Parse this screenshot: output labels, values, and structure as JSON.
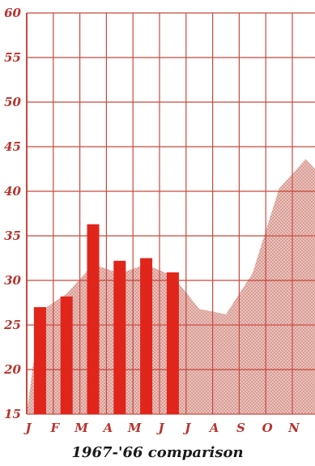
{
  "caption": "1967-'66 comparison",
  "chart_data": {
    "type": "bar",
    "title": "",
    "xlabel": "",
    "ylabel": "",
    "categories": [
      "J",
      "F",
      "M",
      "A",
      "M",
      "J",
      "J",
      "A",
      "S",
      "O",
      "N",
      "D"
    ],
    "ylim": [
      15,
      60
    ],
    "yticks": [
      15,
      20,
      25,
      30,
      35,
      40,
      45,
      50,
      55,
      60
    ],
    "grid": true,
    "series": [
      {
        "type": "bar",
        "values": [
          27,
          28.2,
          36.3,
          32.2,
          32.5,
          30.9,
          null,
          null,
          null,
          null,
          null,
          null
        ]
      },
      {
        "type": "area",
        "values": [
          26.5,
          28.5,
          31.8,
          30.8,
          31.8,
          30.5,
          26.8,
          26.2,
          30.8,
          40.3,
          43.6,
          40.5
        ]
      }
    ],
    "colors": {
      "bar": "#e0251b",
      "area": "#efbfb8",
      "grid": "#c8493f",
      "labels": "#b8332e"
    }
  }
}
